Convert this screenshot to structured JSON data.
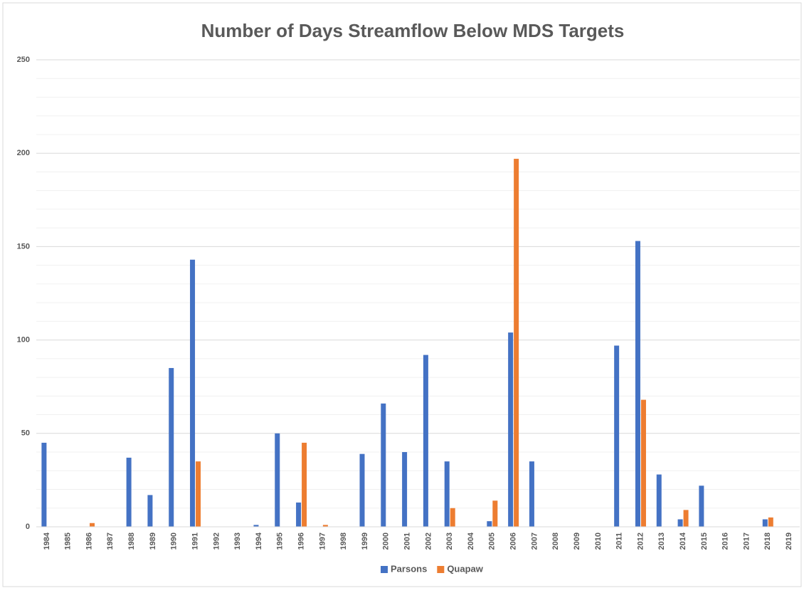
{
  "chart_data": {
    "type": "bar",
    "title": "Number of Days Streamflow Below MDS Targets",
    "categories": [
      "1984",
      "1985",
      "1986",
      "1987",
      "1988",
      "1989",
      "1990",
      "1991",
      "1992",
      "1993",
      "1994",
      "1995",
      "1996",
      "1997",
      "1998",
      "1999",
      "2000",
      "2001",
      "2002",
      "2003",
      "2004",
      "2005",
      "2006",
      "2007",
      "2008",
      "2009",
      "2010",
      "2011",
      "2012",
      "2013",
      "2014",
      "2015",
      "2016",
      "2017",
      "2018",
      "2019"
    ],
    "series": [
      {
        "name": "Parsons",
        "color": "#4472c4",
        "values": [
          45,
          0,
          0,
          0,
          37,
          17,
          85,
          143,
          0,
          0,
          1,
          50,
          13,
          0,
          0,
          39,
          66,
          40,
          92,
          35,
          0,
          3,
          104,
          35,
          0,
          0,
          0,
          97,
          153,
          28,
          4,
          22,
          0,
          0,
          4,
          0
        ]
      },
      {
        "name": "Quapaw",
        "color": "#ed7d31",
        "values": [
          0,
          0,
          2,
          0,
          0,
          0,
          0,
          35,
          0,
          0,
          0,
          0,
          45,
          1,
          0,
          0,
          0,
          0,
          0,
          10,
          0,
          14,
          197,
          0,
          0,
          0,
          0,
          0,
          68,
          0,
          9,
          0,
          0,
          0,
          5,
          0
        ]
      }
    ],
    "ylim": [
      0,
      250
    ],
    "yticks": [
      0,
      50,
      100,
      150,
      200,
      250
    ],
    "minor_yticks": [
      10,
      20,
      30,
      40,
      60,
      70,
      80,
      90,
      110,
      120,
      130,
      140,
      160,
      170,
      180,
      190,
      210,
      220,
      230,
      240
    ],
    "grid": true,
    "legend": "bottom"
  }
}
